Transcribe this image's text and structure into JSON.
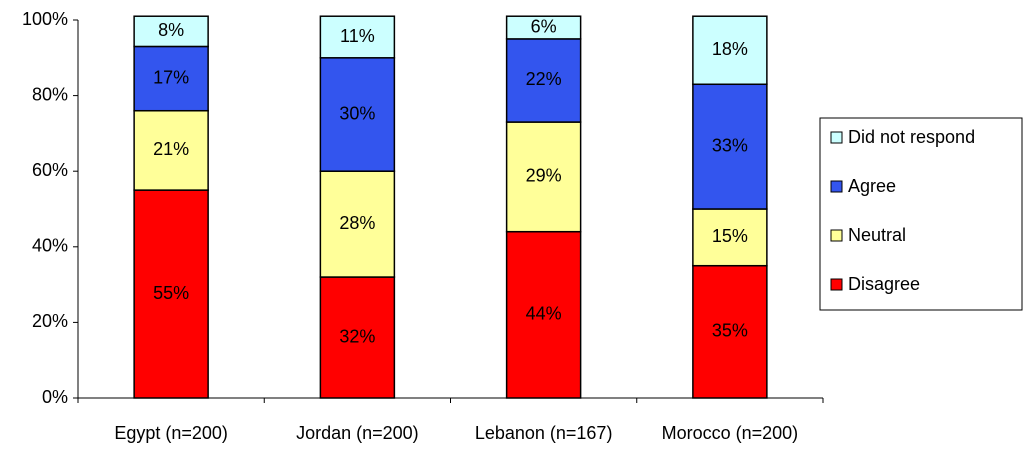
{
  "chart_data": {
    "type": "stacked-bar",
    "categories": [
      "Egypt (n=200)",
      "Jordan (n=200)",
      "Lebanon (n=167)",
      "Morocco (n=200)"
    ],
    "series": [
      {
        "name": "Disagree",
        "color": "#ff0000",
        "values": [
          55,
          32,
          44,
          35
        ],
        "value_labels": [
          "55%",
          "32%",
          "44%",
          "35%"
        ]
      },
      {
        "name": "Neutral",
        "color": "#ffff99",
        "values": [
          21,
          28,
          29,
          15
        ],
        "value_labels": [
          "21%",
          "28%",
          "29%",
          "15%"
        ]
      },
      {
        "name": "Agree",
        "color": "#3355ee",
        "values": [
          17,
          30,
          22,
          33
        ],
        "value_labels": [
          "17%",
          "30%",
          "22%",
          "33%"
        ]
      },
      {
        "name": "Did not respond",
        "color": "#ccffff",
        "values": [
          8,
          11,
          6,
          18
        ],
        "value_labels": [
          "8%",
          "11%",
          "6%",
          "18%"
        ]
      }
    ],
    "ylim": [
      0,
      100
    ],
    "yticks": [
      {
        "value": 0,
        "label": "0%"
      },
      {
        "value": 20,
        "label": "20%"
      },
      {
        "value": 40,
        "label": "40%"
      },
      {
        "value": 60,
        "label": "60%"
      },
      {
        "value": 80,
        "label": "80%"
      },
      {
        "value": 100,
        "label": "100%"
      }
    ],
    "legend": "right"
  }
}
